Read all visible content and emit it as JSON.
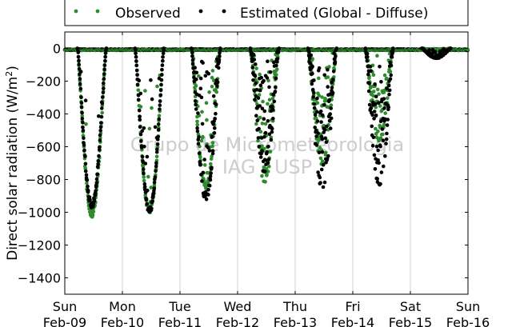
{
  "chart_data": {
    "type": "scatter",
    "ylabel": "Direct solar radiation (W/m²)",
    "ylim": [
      -1500,
      100
    ],
    "yticks": [
      0,
      -200,
      -400,
      -600,
      -800,
      -1000,
      -1200,
      -1400
    ],
    "xlim": [
      "2009-02-09",
      "2009-02-16"
    ],
    "xticks": [
      {
        "date": "2009-02-09",
        "day": "Sun",
        "label": "Feb-09"
      },
      {
        "date": "2009-02-10",
        "day": "Mon",
        "label": "Feb-10"
      },
      {
        "date": "2009-02-11",
        "day": "Tue",
        "label": "Feb-11"
      },
      {
        "date": "2009-02-12",
        "day": "Wed",
        "label": "Feb-12"
      },
      {
        "date": "2009-02-13",
        "day": "Thu",
        "label": "Feb-13"
      },
      {
        "date": "2009-02-14",
        "day": "Fri",
        "label": "Feb-14"
      },
      {
        "date": "2009-02-15",
        "day": "Sat",
        "label": "Feb-15"
      },
      {
        "date": "2009-02-16",
        "day": "Sun",
        "label": "Feb-16"
      }
    ],
    "grid": "vertical",
    "legend": "top",
    "watermark": [
      "Grupo de Micrometeorologia",
      "IAG / USP"
    ],
    "series": [
      {
        "name": "Observed",
        "color": "#2e8b2e",
        "marker": "dot"
      },
      {
        "name": "Estimated (Global - Diffuse)",
        "color": "#000000",
        "marker": "dot"
      }
    ],
    "daily_minima": [
      {
        "date": "2009-02-09",
        "observed": -1010,
        "estimated": -955
      },
      {
        "date": "2009-02-10",
        "observed": -1000,
        "estimated": -990
      },
      {
        "date": "2009-02-11",
        "observed": -840,
        "estimated": -910
      },
      {
        "date": "2009-02-12",
        "observed": -810,
        "estimated": -760
      },
      {
        "date": "2009-02-13",
        "observed": -700,
        "estimated": -850
      },
      {
        "date": "2009-02-14",
        "observed": -560,
        "estimated": -840
      },
      {
        "date": "2009-02-15",
        "observed": -20,
        "estimated": -60
      },
      {
        "date": "2009-02-16",
        "observed": 0,
        "estimated": 0
      }
    ]
  }
}
